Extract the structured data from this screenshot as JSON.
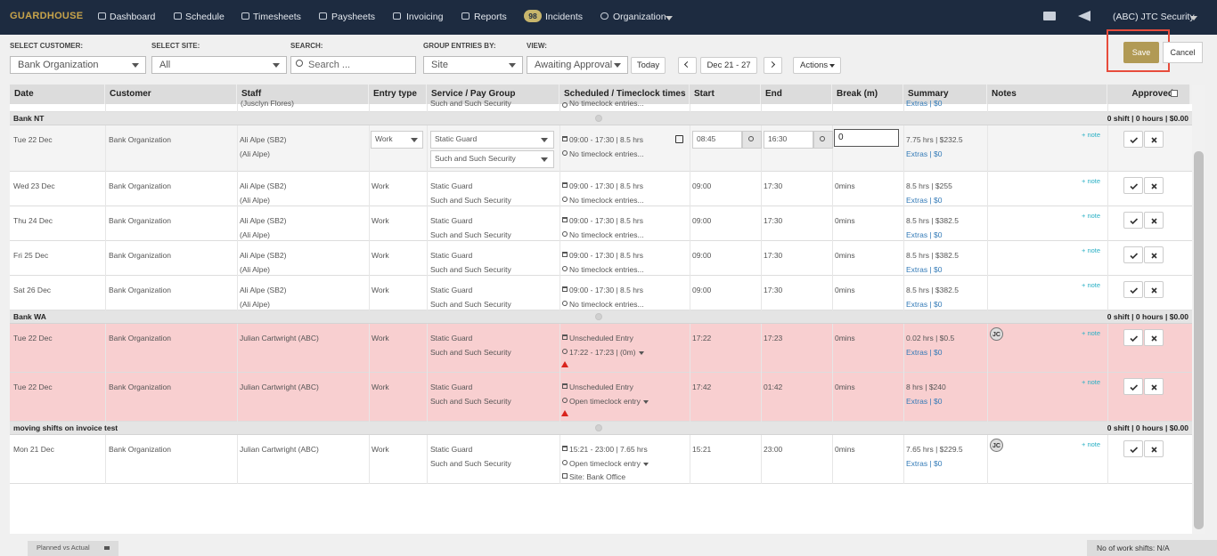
{
  "nav": {
    "logo": "GUARDHOUSE",
    "items": [
      "Dashboard",
      "Schedule",
      "Timesheets",
      "Paysheets",
      "Invoicing",
      "Reports"
    ],
    "incidents_badge": "98",
    "incidents": "Incidents",
    "organization": "Organization",
    "account": "(ABC) JTC Security"
  },
  "filters": {
    "customer_label": "SELECT CUSTOMER:",
    "customer": "Bank Organization",
    "site_label": "SELECT SITE:",
    "site": "All",
    "search_label": "SEARCH:",
    "search_placeholder": "Search ...",
    "group_label": "GROUP ENTRIES BY:",
    "group": "Site",
    "view_label": "VIEW:",
    "view": "Awaiting Approval",
    "today": "Today",
    "range": "Dec 21 - 27",
    "actions": "Actions",
    "save": "Save",
    "cancel": "Cancel"
  },
  "table": {
    "columns": [
      "Date",
      "Customer",
      "Staff",
      "Entry type",
      "Service / Pay Group",
      "Scheduled / Timeclock times",
      "Start",
      "End",
      "Break (m)",
      "Summary",
      "Notes",
      "Approved"
    ],
    "partial_row": {
      "staff_alias": "(Jusclyn Flores)",
      "pay_group": "Such and Such Security",
      "timeclock": "No timeclock entries...",
      "extras": "Extras | $0"
    },
    "groups": [
      {
        "name": "Bank NT",
        "totals": "0 shift | 0 hours | $0.00",
        "rows": [
          {
            "edit": true,
            "date": "Tue 22 Dec",
            "customer": "Bank Organization",
            "staff": "Ali Alpe (SB2)",
            "staff_alias": "(Ali Alpe)",
            "entry_type": "Work",
            "service": "Static Guard",
            "pay_group": "Such and Such Security",
            "scheduled": "09:00 - 17:30 | 8.5 hrs",
            "timeclock": "No timeclock entries...",
            "start": "08:45",
            "end": "16:30",
            "break": "0",
            "summary": "7.75 hrs | $232.5",
            "extras": "Extras | $0",
            "note": "+ note"
          },
          {
            "date": "Wed 23 Dec",
            "customer": "Bank Organization",
            "staff": "Ali Alpe (SB2)",
            "staff_alias": "(Ali Alpe)",
            "entry_type": "Work",
            "service": "Static Guard",
            "pay_group": "Such and Such Security",
            "scheduled": "09:00 - 17:30 | 8.5 hrs",
            "timeclock": "No timeclock entries...",
            "start": "09:00",
            "end": "17:30",
            "break": "0mins",
            "summary": "8.5 hrs | $255",
            "extras": "Extras | $0",
            "note": "+ note"
          },
          {
            "date": "Thu 24 Dec",
            "customer": "Bank Organization",
            "staff": "Ali Alpe (SB2)",
            "staff_alias": "(Ali Alpe)",
            "entry_type": "Work",
            "service": "Static Guard",
            "pay_group": "Such and Such Security",
            "scheduled": "09:00 - 17:30 | 8.5 hrs",
            "timeclock": "No timeclock entries...",
            "start": "09:00",
            "end": "17:30",
            "break": "0mins",
            "summary": "8.5 hrs | $382.5",
            "extras": "Extras | $0",
            "note": "+ note"
          },
          {
            "date": "Fri 25 Dec",
            "customer": "Bank Organization",
            "staff": "Ali Alpe (SB2)",
            "staff_alias": "(Ali Alpe)",
            "entry_type": "Work",
            "service": "Static Guard",
            "pay_group": "Such and Such Security",
            "scheduled": "09:00 - 17:30 | 8.5 hrs",
            "timeclock": "No timeclock entries...",
            "start": "09:00",
            "end": "17:30",
            "break": "0mins",
            "summary": "8.5 hrs | $382.5",
            "extras": "Extras | $0",
            "note": "+ note"
          },
          {
            "date": "Sat 26 Dec",
            "customer": "Bank Organization",
            "staff": "Ali Alpe (SB2)",
            "staff_alias": "(Ali Alpe)",
            "entry_type": "Work",
            "service": "Static Guard",
            "pay_group": "Such and Such Security",
            "scheduled": "09:00 - 17:30 | 8.5 hrs",
            "timeclock": "No timeclock entries...",
            "start": "09:00",
            "end": "17:30",
            "break": "0mins",
            "summary": "8.5 hrs | $382.5",
            "extras": "Extras | $0",
            "note": "+ note"
          }
        ]
      },
      {
        "name": "Bank WA",
        "totals": "0 shift | 0 hours | $0.00",
        "rows": [
          {
            "flag": true,
            "warning": true,
            "dropdown": true,
            "date": "Tue 22 Dec",
            "customer": "Bank Organization",
            "staff": "Julian Cartwright (ABC)",
            "entry_type": "Work",
            "service": "Static Guard",
            "pay_group": "Such and Such Security",
            "scheduled": "Unscheduled Entry",
            "timeclock": "17:22 - 17:23 | (0m)",
            "start": "17:22",
            "end": "17:23",
            "break": "0mins",
            "summary": "0.02 hrs | $0.5",
            "extras": "Extras | $0",
            "initials": "JC",
            "note": "+ note"
          },
          {
            "flag": true,
            "warning": true,
            "dropdown": true,
            "date": "Tue 22 Dec",
            "customer": "Bank Organization",
            "staff": "Julian Cartwright (ABC)",
            "entry_type": "Work",
            "service": "Static Guard",
            "pay_group": "Such and Such Security",
            "scheduled": "Unscheduled Entry",
            "timeclock": "Open timeclock entry",
            "start": "17:42",
            "end": "01:42",
            "break": "0mins",
            "summary": "8 hrs | $240",
            "extras": "Extras | $0",
            "note": "+ note"
          }
        ]
      },
      {
        "name": "moving shifts on invoice test",
        "totals": "0 shift | 0 hours | $0.00",
        "rows": [
          {
            "dropdown": true,
            "date": "Mon 21 Dec",
            "customer": "Bank Organization",
            "staff": "Julian Cartwright (ABC)",
            "entry_type": "Work",
            "service": "Static Guard",
            "pay_group": "Such and Such Security",
            "scheduled": "15:21 - 23:00 | 7.65 hrs",
            "timeclock": "Open timeclock entry",
            "site": "Site: Bank Office",
            "start": "15:21",
            "end": "23:00",
            "break": "0mins",
            "summary": "7.65 hrs | $229.5",
            "extras": "Extras | $0",
            "initials": "JC",
            "note": "+ note"
          }
        ]
      }
    ]
  },
  "footer": {
    "tab": "Planned vs Actual",
    "count": "No of work shifts: N/A"
  }
}
